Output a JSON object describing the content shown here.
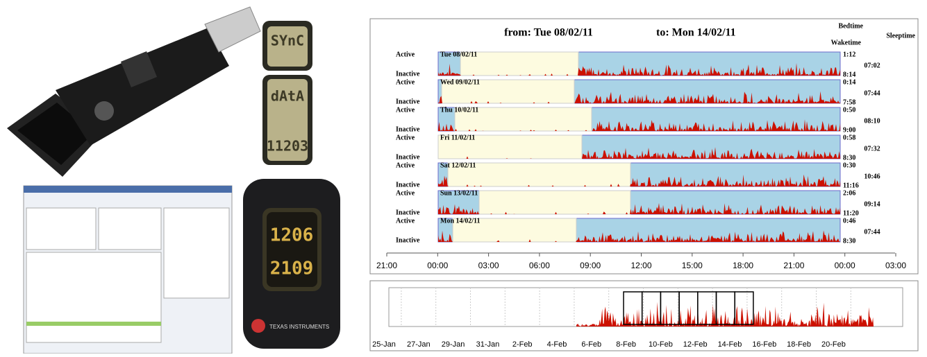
{
  "photos": {
    "dongle": {},
    "watch_tiles": [
      "SYnC",
      "dAtA",
      "11203"
    ],
    "watch_time": [
      "1206",
      "2109"
    ],
    "watch_brand": "TEXAS INSTRUMENTS"
  },
  "sleep_chart": {
    "from": "from: Tue 08/02/11",
    "to": "to: Mon 14/02/11",
    "legend": [
      "Bedtime",
      "Sleeptime",
      "Waketime"
    ],
    "active_label": "Active",
    "inactive_label": "Inactive",
    "days": [
      {
        "label": "Tue 08/02/11",
        "bedtime": "1:12",
        "waketime": "8:14",
        "sleeptime": "07:02"
      },
      {
        "label": "Wed 09/02/11",
        "bedtime": "0:14",
        "waketime": "7:58",
        "sleeptime": "07:44"
      },
      {
        "label": "Thu 10/02/11",
        "bedtime": "0:50",
        "waketime": "9:00",
        "sleeptime": "08:10"
      },
      {
        "label": "Fri 11/02/11",
        "bedtime": "0:58",
        "waketime": "8:30",
        "sleeptime": "07:32"
      },
      {
        "label": "Sat 12/02/11",
        "bedtime": "0:30",
        "waketime": "11:16",
        "sleeptime": "10:46"
      },
      {
        "label": "Sun 13/02/11",
        "bedtime": "2:06",
        "waketime": "11:20",
        "sleeptime": "09:14"
      },
      {
        "label": "Mon 14/02/11",
        "bedtime": "0:46",
        "waketime": "8:30",
        "sleeptime": "07:44"
      }
    ],
    "x_ticks": [
      "21:00",
      "00:00",
      "03:00",
      "06:00",
      "09:00",
      "12:00",
      "15:00",
      "18:00",
      "21:00",
      "00:00",
      "03:00"
    ]
  },
  "overview_chart": {
    "x_ticks": [
      "25-Jan",
      "27-Jan",
      "29-Jan",
      "31-Jan",
      "2-Feb",
      "4-Feb",
      "6-Feb",
      "8-Feb",
      "10-Feb",
      "12-Feb",
      "14-Feb",
      "16-Feb",
      "18-Feb",
      "20-Feb"
    ]
  }
}
